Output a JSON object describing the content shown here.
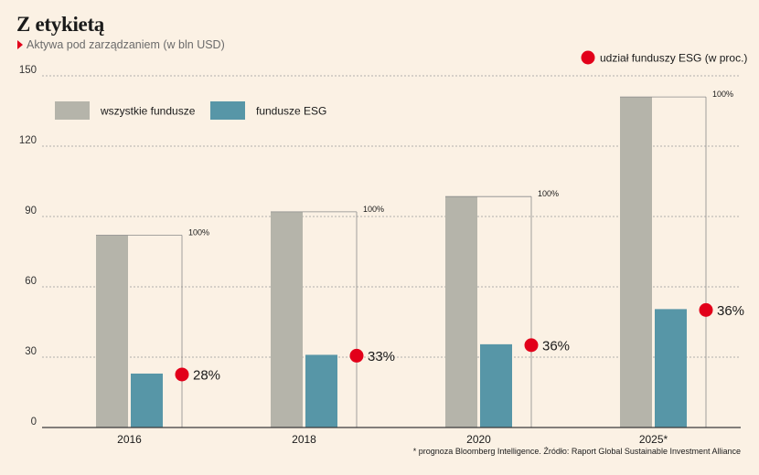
{
  "title": "Z etykietą",
  "subtitle": "Aktywa pod zarządzaniem (w bln USD)",
  "footnote": "* prognoza Bloomberg Intelligence. Źródło: Raport Global Sustainable Investment Alliance",
  "colors": {
    "background": "#fbf1e4",
    "all_funds": "#b5b4aa",
    "esg_funds": "#5796a7",
    "esg_share_dot": "#e2001a"
  },
  "chart_data": {
    "type": "bar",
    "title": "Z etykietą",
    "subtitle": "Aktywa pod zarządzaniem (w bln USD)",
    "categories": [
      "2016",
      "2018",
      "2020",
      "2025*"
    ],
    "series": [
      {
        "name": "wszystkie fundusze",
        "values": [
          82,
          92,
          98.5,
          141
        ]
      },
      {
        "name": "fundusze ESG",
        "values": [
          23,
          31,
          35.5,
          50.5
        ]
      }
    ],
    "share_series": {
      "name": "udział funduszy ESG (w proc.)",
      "values": [
        28,
        33,
        36,
        36
      ],
      "labels": [
        "28%",
        "33%",
        "36%",
        "36%"
      ],
      "total_label": "100%"
    },
    "ylim": [
      0,
      150
    ],
    "yticks": [
      0,
      30,
      60,
      90,
      120,
      150
    ],
    "grid": true,
    "legend_placement": "top-left"
  }
}
